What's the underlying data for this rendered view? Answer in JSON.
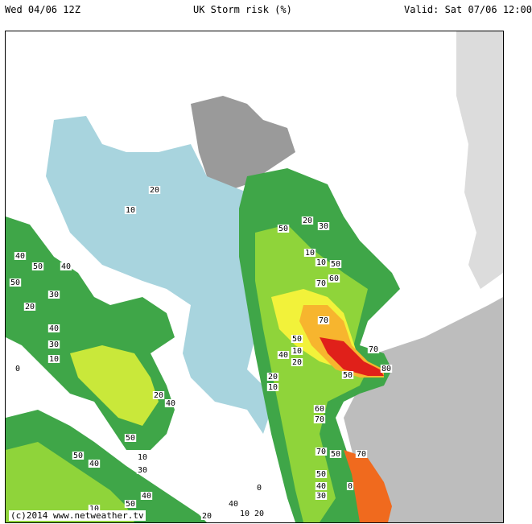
{
  "header": {
    "run": "Wed 04/06 12Z",
    "title": "UK Storm risk (%)",
    "valid": "Valid: Sat 07/06 12:00"
  },
  "map": {
    "colors": {
      "sea": "#ffffff",
      "land_dark": "#8c8c8c",
      "land_light": "#d9d9d9",
      "low_risk": "#a8d4de",
      "risk_10": "#2f8c4a",
      "risk_20": "#3fa648",
      "risk_30": "#5abf3c",
      "risk_40": "#8fd43a",
      "risk_50": "#c9e83a",
      "risk_60": "#f2f23a",
      "risk_70": "#f7b52e",
      "risk_80": "#f06a1e",
      "risk_90": "#e0201a"
    },
    "contour_labels": [
      "10",
      "20",
      "30",
      "40",
      "50",
      "60",
      "70",
      "80",
      "0"
    ],
    "copyright": "(c)2014 www.netweather.tv"
  }
}
